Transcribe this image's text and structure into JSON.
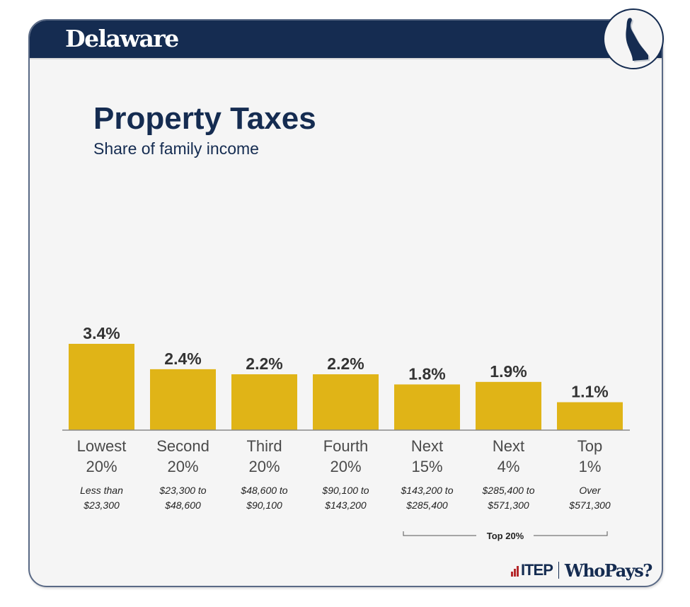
{
  "header": {
    "state": "Delaware",
    "state_icon": "delaware-state-shape-icon"
  },
  "title": "Property Taxes",
  "subtitle": "Share of family income",
  "colors": {
    "navy": "#152c51",
    "bar": "#e0b417",
    "itep_red": "#b5282b"
  },
  "chart_data": {
    "type": "bar",
    "title": "Property Taxes",
    "subtitle": "Share of family income",
    "xlabel": "",
    "ylabel": "",
    "ylim": [
      0,
      3.4
    ],
    "grid": false,
    "categories": [
      {
        "line1": "Lowest",
        "line2": "20%",
        "range1": "Less than",
        "range2": "$23,300"
      },
      {
        "line1": "Second",
        "line2": "20%",
        "range1": "$23,300 to",
        "range2": "$48,600"
      },
      {
        "line1": "Third",
        "line2": "20%",
        "range1": "$48,600 to",
        "range2": "$90,100"
      },
      {
        "line1": "Fourth",
        "line2": "20%",
        "range1": "$90,100 to",
        "range2": "$143,200"
      },
      {
        "line1": "Next",
        "line2": "15%",
        "range1": "$143,200 to",
        "range2": "$285,400"
      },
      {
        "line1": "Next",
        "line2": "4%",
        "range1": "$285,400 to",
        "range2": "$571,300"
      },
      {
        "line1": "Top",
        "line2": "1%",
        "range1": "Over",
        "range2": "$571,300"
      }
    ],
    "values": [
      3.4,
      2.4,
      2.2,
      2.2,
      1.8,
      1.9,
      1.1
    ],
    "value_labels": [
      "3.4%",
      "2.4%",
      "2.2%",
      "2.2%",
      "1.8%",
      "1.9%",
      "1.1%"
    ],
    "annotation": {
      "label": "Top 20%",
      "spans_categories": [
        4,
        6
      ]
    }
  },
  "footer": {
    "itep": "ITEP",
    "whopays": "WhoPays?"
  }
}
